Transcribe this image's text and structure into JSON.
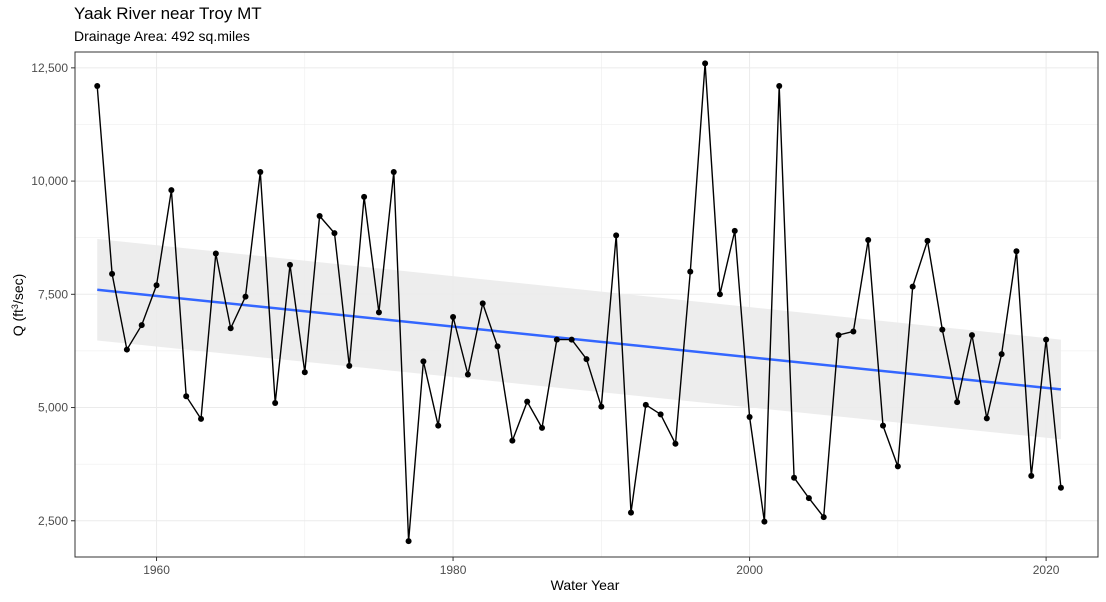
{
  "title": "Yaak River near Troy MT",
  "subtitle": "Drainage Area: 492 sq.miles",
  "chart_data": {
    "type": "line",
    "xlabel": "Water Year",
    "ylabel_prefix": "Q (ft",
    "ylabel_sup": "3",
    "ylabel_suffix": "/sec)",
    "xlim": [
      1954.5,
      2023.5
    ],
    "ylim": [
      1700,
      12850
    ],
    "x_ticks": [
      1960,
      1980,
      2000,
      2020
    ],
    "x_tick_labels": [
      "1960",
      "1980",
      "2000",
      "2020"
    ],
    "y_ticks": [
      2500,
      5000,
      7500,
      10000,
      12500
    ],
    "y_tick_labels": [
      "2,500",
      "5,000",
      "7,500",
      "10,000",
      "12,500"
    ],
    "grid": true,
    "colors": {
      "series": "#000000",
      "trend": "#3366ff",
      "band": "#ebebeb",
      "grid": "#ebebeb",
      "border": "#333333"
    },
    "series": [
      {
        "x": [
          1956,
          1957,
          1958,
          1959,
          1960,
          1961,
          1962,
          1963,
          1964,
          1965,
          1966,
          1967,
          1968,
          1969,
          1970,
          1971,
          1972,
          1973,
          1974,
          1975,
          1976,
          1977,
          1978,
          1979,
          1980,
          1981,
          1982,
          1983,
          1984,
          1985,
          1986,
          1987,
          1988,
          1989,
          1990,
          1991,
          1992,
          1993,
          1994,
          1995,
          1996,
          1997,
          1998,
          1999,
          2000,
          2001,
          2002,
          2003,
          2004,
          2005,
          2006,
          2007,
          2008,
          2009,
          2010,
          2011,
          2012,
          2013,
          2014,
          2015,
          2016,
          2017,
          2018,
          2019,
          2020,
          2021
        ],
        "values": [
          12100,
          7950,
          6280,
          6820,
          7700,
          9800,
          5250,
          4750,
          8400,
          6750,
          7450,
          10200,
          5100,
          8150,
          5780,
          9230,
          8850,
          5920,
          9650,
          7100,
          10200,
          2050,
          6020,
          4600,
          7000,
          5730,
          7300,
          6350,
          4270,
          5130,
          4550,
          6500,
          6500,
          6070,
          5020,
          8800,
          2680,
          5060,
          4850,
          4200,
          8000,
          12600,
          7500,
          8900,
          4790,
          2480,
          12100,
          3450,
          3000,
          2580,
          6600,
          6680,
          8700,
          4600,
          3700,
          7670,
          8680,
          6720,
          5120,
          6600,
          4760,
          6180,
          8450,
          3490,
          6500,
          3230
        ]
      }
    ],
    "trend": {
      "x": [
        1956,
        2021
      ],
      "y": [
        7600,
        5400
      ],
      "ci_lower": [
        6480,
        4300
      ],
      "ci_upper": [
        8720,
        6500
      ]
    }
  }
}
